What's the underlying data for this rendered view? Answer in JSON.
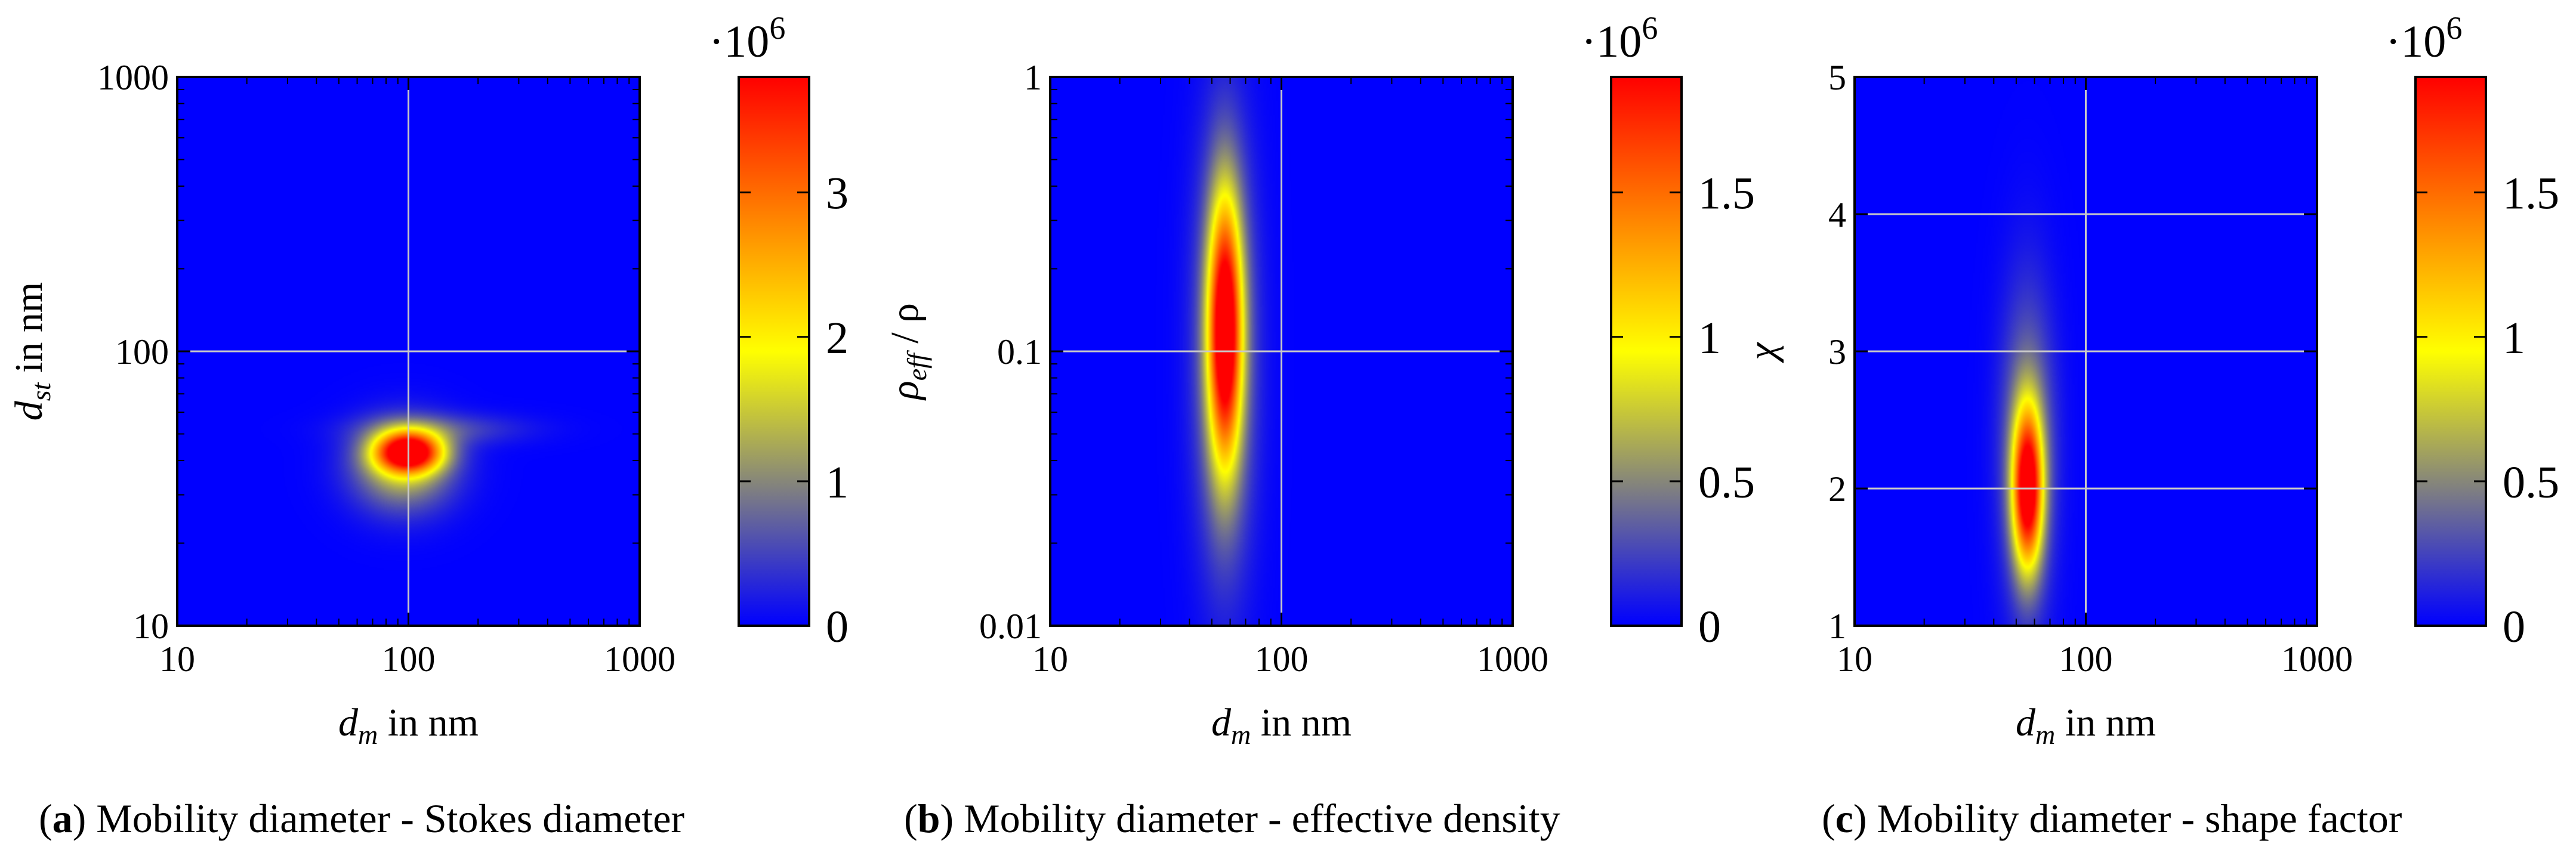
{
  "colors": {
    "background": "#0000ff",
    "grid": "#c8c8c8",
    "colormap": [
      "#0000ff",
      "#808080",
      "#ffff00",
      "#ff8000",
      "#ff0000"
    ]
  },
  "chart_data": [
    {
      "type": "heatmap",
      "panel_letter": "a",
      "caption_text": "Mobility diameter - Stokes diameter",
      "xlabel": {
        "sym": "d",
        "sub": "m",
        "unit": "in nm"
      },
      "ylabel": {
        "sym": "d",
        "sub": "st",
        "unit": "in nm"
      },
      "xscale": "log",
      "yscale": "log",
      "xlim": [
        10,
        1000
      ],
      "ylim": [
        10,
        1000
      ],
      "xticks": [
        {
          "v": 10,
          "label": "10"
        },
        {
          "v": 100,
          "label": "100"
        },
        {
          "v": 1000,
          "label": "1000"
        }
      ],
      "yticks": [
        {
          "v": 10,
          "label": "10"
        },
        {
          "v": 100,
          "label": "100"
        },
        {
          "v": 1000,
          "label": "1000"
        }
      ],
      "grid": true,
      "colorbar": {
        "multiplier": "·10",
        "multiplier_exp": "6",
        "range": [
          0,
          3.8
        ],
        "ticks": [
          {
            "v": 0,
            "label": "0"
          },
          {
            "v": 1,
            "label": "1"
          },
          {
            "v": 2,
            "label": "2"
          },
          {
            "v": 3,
            "label": "3"
          }
        ]
      },
      "blobs": [
        {
          "x": 100,
          "y": 43,
          "sx": 0.1,
          "sy": 0.05,
          "peak": 3.8
        },
        {
          "x": 95,
          "y": 38,
          "sx": 0.15,
          "sy": 0.11,
          "peak": 1.5
        },
        {
          "x": 140,
          "y": 52,
          "sx": 0.25,
          "sy": 0.04,
          "peak": 0.5
        }
      ]
    },
    {
      "type": "heatmap",
      "panel_letter": "b",
      "caption_text": "Mobility diameter - effective density",
      "xlabel": {
        "sym": "d",
        "sub": "m",
        "unit": "in nm"
      },
      "ylabel": {
        "sym": "ρ",
        "sub": "eff",
        "unit": "/ ρ"
      },
      "xscale": "log",
      "yscale": "log",
      "xlim": [
        10,
        1000
      ],
      "ylim": [
        0.01,
        1
      ],
      "xticks": [
        {
          "v": 10,
          "label": "10"
        },
        {
          "v": 100,
          "label": "100"
        },
        {
          "v": 1000,
          "label": "1000"
        }
      ],
      "yticks": [
        {
          "v": 0.01,
          "label": "0.01"
        },
        {
          "v": 0.1,
          "label": "0.1"
        },
        {
          "v": 1,
          "label": "1"
        }
      ],
      "grid": true,
      "colorbar": {
        "multiplier": "·10",
        "multiplier_exp": "6",
        "range": [
          0,
          1.9
        ],
        "ticks": [
          {
            "v": 0,
            "label": "0"
          },
          {
            "v": 0.5,
            "label": "0.5"
          },
          {
            "v": 1,
            "label": "1"
          },
          {
            "v": 1.5,
            "label": "1.5"
          }
        ]
      },
      "blobs": [
        {
          "x": 57,
          "y": 0.12,
          "sx": 0.05,
          "sy": 0.33,
          "peak": 1.9
        },
        {
          "x": 57,
          "y": 0.1,
          "sx": 0.09,
          "sy": 0.55,
          "peak": 0.55
        }
      ]
    },
    {
      "type": "heatmap",
      "panel_letter": "c",
      "caption_text": "Mobility diameter - shape factor",
      "xlabel": {
        "sym": "d",
        "sub": "m",
        "unit": "in nm"
      },
      "ylabel": {
        "sym": "χ",
        "sub": "",
        "unit": ""
      },
      "xscale": "log",
      "yscale": "linear",
      "xlim": [
        10,
        1000
      ],
      "ylim": [
        1,
        5
      ],
      "xticks": [
        {
          "v": 10,
          "label": "10"
        },
        {
          "v": 100,
          "label": "100"
        },
        {
          "v": 1000,
          "label": "1000"
        }
      ],
      "yticks": [
        {
          "v": 1,
          "label": "1"
        },
        {
          "v": 2,
          "label": "2"
        },
        {
          "v": 3,
          "label": "3"
        },
        {
          "v": 4,
          "label": "4"
        },
        {
          "v": 5,
          "label": "5"
        }
      ],
      "grid": true,
      "colorbar": {
        "multiplier": "·10",
        "multiplier_exp": "6",
        "range": [
          0,
          1.9
        ],
        "ticks": [
          {
            "v": 0,
            "label": "0"
          },
          {
            "v": 0.5,
            "label": "0.5"
          },
          {
            "v": 1,
            "label": "1"
          },
          {
            "v": 1.5,
            "label": "1.5"
          }
        ]
      },
      "blobs": [
        {
          "x": 56,
          "y": 2.0,
          "sx": 0.045,
          "sy": 0.4,
          "peak": 1.9
        },
        {
          "x": 56,
          "y": 2.3,
          "sx": 0.08,
          "sy": 0.8,
          "peak": 0.5
        }
      ]
    }
  ]
}
